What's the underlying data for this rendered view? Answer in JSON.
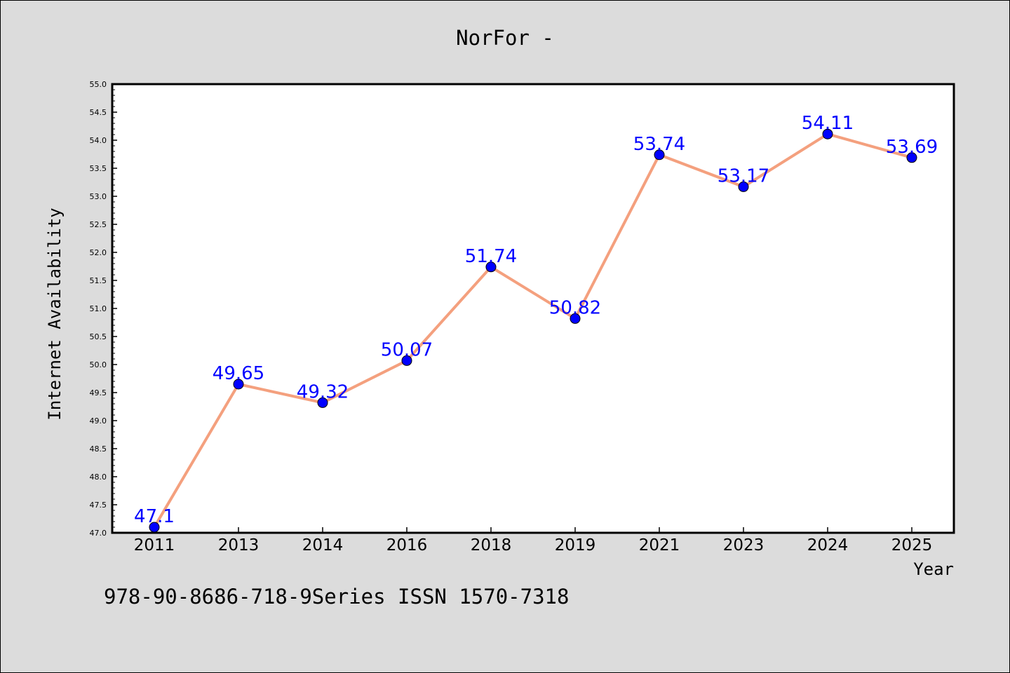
{
  "chart_data": {
    "type": "line",
    "title": "NorFor -",
    "xlabel": "Year",
    "ylabel": "Internet Availability",
    "categories": [
      "2011",
      "2013",
      "2014",
      "2016",
      "2018",
      "2019",
      "2021",
      "2023",
      "2024",
      "2025"
    ],
    "series": [
      {
        "values": [
          47.1,
          49.65,
          49.32,
          50.07,
          51.74,
          50.82,
          53.74,
          53.17,
          54.11,
          53.69
        ],
        "labels": [
          "47.1",
          "49.65",
          "49.32",
          "50.07",
          "51.74",
          "50.82",
          "53.74",
          "53.17",
          "54.11",
          "53.69"
        ],
        "line_color": "#f4a07e",
        "marker_color": "#0000ff",
        "label_color": "#0000ff"
      }
    ],
    "ylim": [
      47.0,
      55.0
    ],
    "yticks": [
      "47.0",
      "47.5",
      "48.0",
      "48.5",
      "49.0",
      "49.5",
      "50.0",
      "50.5",
      "51.0",
      "51.5",
      "52.0",
      "52.5",
      "53.0",
      "53.5",
      "54.0",
      "54.5",
      "55.0"
    ],
    "grid": false,
    "background_color": "#dcdcdc",
    "plot_background_color": "#ffffff"
  },
  "footer": {
    "text": "978-90-8686-718-9Series ISSN 1570-7318"
  }
}
